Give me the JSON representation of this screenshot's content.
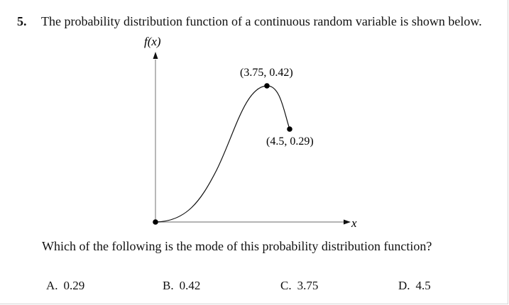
{
  "question": {
    "number": "5.",
    "text": "The probability distribution function of a continuous random variable is shown below.",
    "followup": "Which of the following is the mode of this probability distribution function?"
  },
  "graph": {
    "y_axis_label": "f(x)",
    "x_axis_label": "x",
    "points": [
      {
        "label": "(3.75, 0.42)",
        "x": 3.75,
        "y": 0.42
      },
      {
        "label": "(4.5, 0.29)",
        "x": 4.5,
        "y": 0.29
      }
    ],
    "curve_color": "#111111"
  },
  "choices": [
    {
      "letter": "A.",
      "value": "0.29"
    },
    {
      "letter": "B.",
      "value": "0.42"
    },
    {
      "letter": "C.",
      "value": "3.75"
    },
    {
      "letter": "D.",
      "value": "4.5"
    }
  ]
}
